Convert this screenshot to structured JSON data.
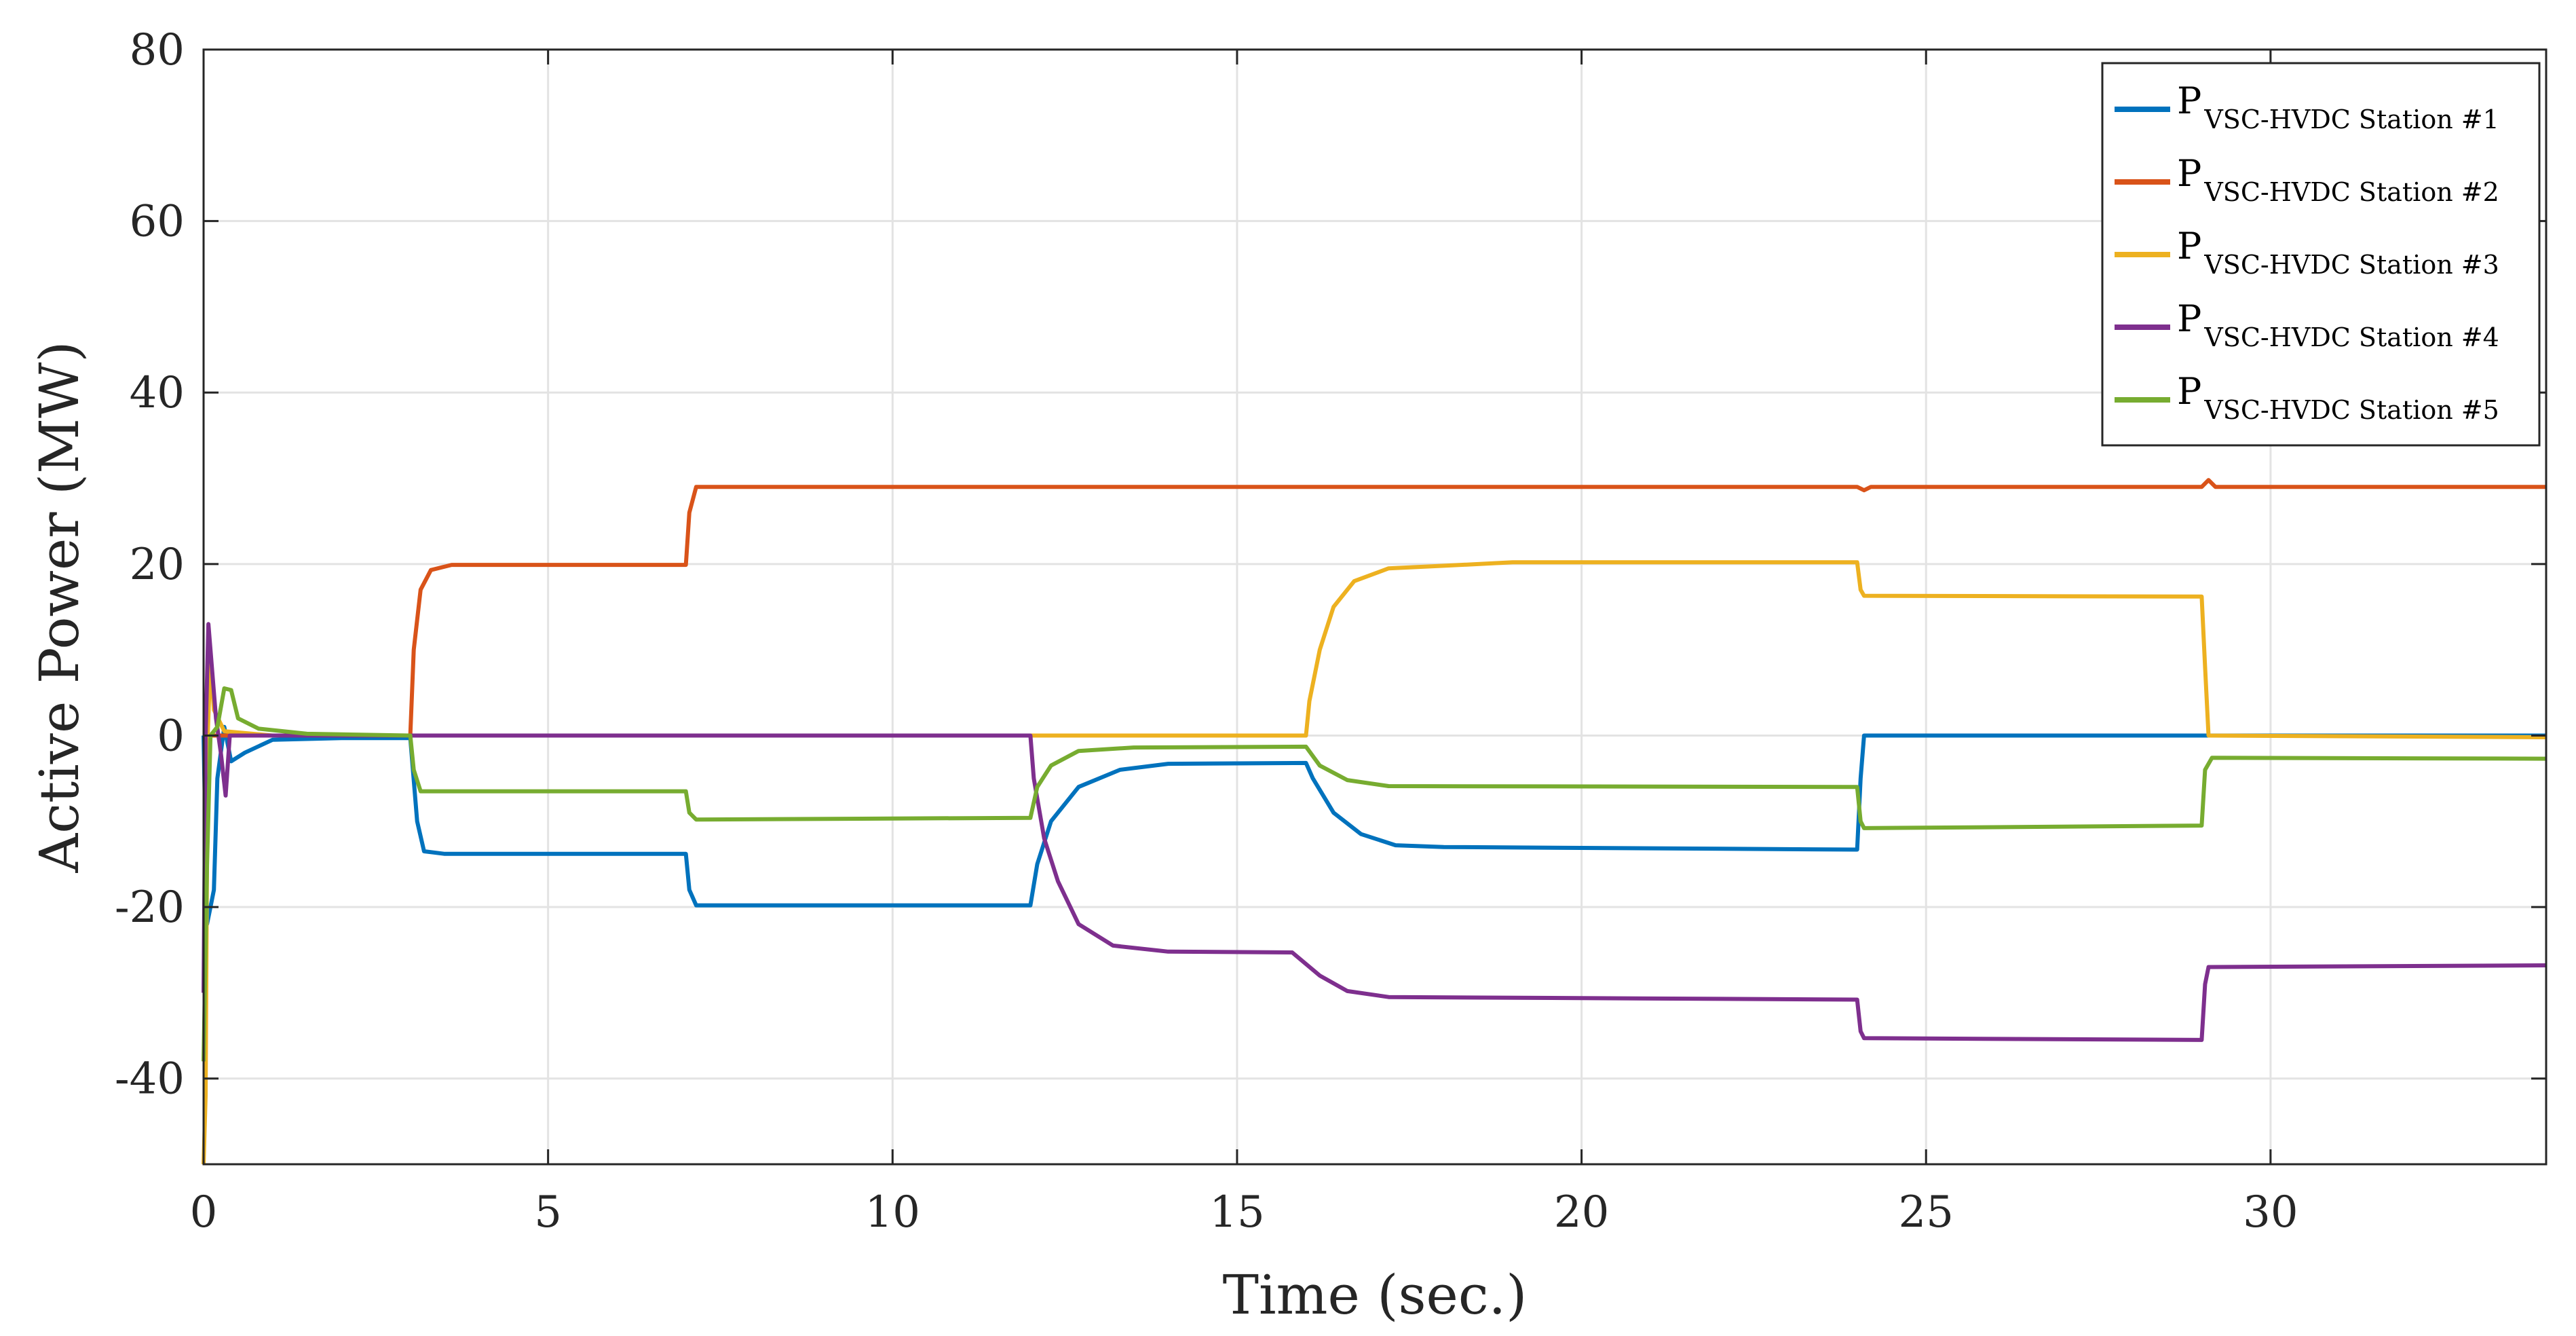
{
  "chart_data": {
    "type": "line",
    "title": "",
    "xlabel": "Time (sec.)",
    "ylabel": "Active Power (MW)",
    "xlim": [
      0,
      34
    ],
    "ylim": [
      -50,
      80
    ],
    "grid": true,
    "legend_position": "top-right",
    "x_ticks": [
      0,
      5,
      10,
      15,
      20,
      25,
      30
    ],
    "y_ticks": [
      -40,
      -20,
      0,
      20,
      40,
      60,
      80
    ],
    "series": [
      {
        "name": "P",
        "subscript": "VSC-HVDC Station #1",
        "color": "#0072BD",
        "points": [
          [
            0,
            0
          ],
          [
            0.05,
            -22
          ],
          [
            0.1,
            -20
          ],
          [
            0.15,
            -18
          ],
          [
            0.2,
            -5
          ],
          [
            0.3,
            1
          ],
          [
            0.4,
            -3
          ],
          [
            0.6,
            -2
          ],
          [
            1,
            -0.5
          ],
          [
            2,
            -0.3
          ],
          [
            3,
            -0.3
          ],
          [
            3.1,
            -10
          ],
          [
            3.2,
            -13.5
          ],
          [
            3.5,
            -13.8
          ],
          [
            7,
            -13.8
          ],
          [
            7.05,
            -18
          ],
          [
            7.15,
            -19.8
          ],
          [
            7.5,
            -19.8
          ],
          [
            12,
            -19.8
          ],
          [
            12.1,
            -15
          ],
          [
            12.3,
            -10
          ],
          [
            12.7,
            -6
          ],
          [
            13.3,
            -4
          ],
          [
            14,
            -3.3
          ],
          [
            16,
            -3.2
          ],
          [
            16.1,
            -5
          ],
          [
            16.4,
            -9
          ],
          [
            16.8,
            -11.5
          ],
          [
            17.3,
            -12.8
          ],
          [
            18,
            -13
          ],
          [
            24,
            -13.3
          ],
          [
            24.05,
            -5
          ],
          [
            24.1,
            0
          ],
          [
            29,
            0
          ],
          [
            34,
            0
          ]
        ]
      },
      {
        "name": "P",
        "subscript": "VSC-HVDC Station #2",
        "color": "#D95319",
        "points": [
          [
            0,
            0
          ],
          [
            3,
            0
          ],
          [
            3.05,
            10
          ],
          [
            3.15,
            17
          ],
          [
            3.3,
            19.3
          ],
          [
            3.6,
            19.9
          ],
          [
            7,
            19.9
          ],
          [
            7.05,
            26
          ],
          [
            7.15,
            29
          ],
          [
            12,
            29
          ],
          [
            24,
            29
          ],
          [
            24.1,
            28.6
          ],
          [
            24.2,
            29
          ],
          [
            29,
            29
          ],
          [
            29.1,
            29.8
          ],
          [
            29.2,
            29
          ],
          [
            34,
            29
          ]
        ]
      },
      {
        "name": "P",
        "subscript": "VSC-HVDC Station #3",
        "color": "#EDB120",
        "points": [
          [
            0,
            -50
          ],
          [
            0.03,
            -42
          ],
          [
            0.06,
            0
          ],
          [
            0.1,
            9
          ],
          [
            0.15,
            3
          ],
          [
            0.3,
            0.5
          ],
          [
            1,
            0
          ],
          [
            12,
            0
          ],
          [
            16,
            0
          ],
          [
            16.05,
            4
          ],
          [
            16.2,
            10
          ],
          [
            16.4,
            15
          ],
          [
            16.7,
            18
          ],
          [
            17.2,
            19.5
          ],
          [
            18,
            19.8
          ],
          [
            19,
            20.2
          ],
          [
            24,
            20.2
          ],
          [
            24.05,
            17
          ],
          [
            24.1,
            16.3
          ],
          [
            29,
            16.2
          ],
          [
            29.05,
            8
          ],
          [
            29.1,
            0
          ],
          [
            34,
            -0.2
          ]
        ]
      },
      {
        "name": "P",
        "subscript": "VSC-HVDC Station #4",
        "color": "#7E2F8E",
        "points": [
          [
            0,
            -30
          ],
          [
            0.03,
            0
          ],
          [
            0.07,
            13
          ],
          [
            0.12,
            8
          ],
          [
            0.18,
            2
          ],
          [
            0.25,
            -2
          ],
          [
            0.32,
            -7
          ],
          [
            0.38,
            0
          ],
          [
            0.5,
            0
          ],
          [
            12,
            0
          ],
          [
            12.05,
            -5
          ],
          [
            12.2,
            -12
          ],
          [
            12.4,
            -17
          ],
          [
            12.7,
            -22
          ],
          [
            13.2,
            -24.5
          ],
          [
            14,
            -25.2
          ],
          [
            15.8,
            -25.3
          ],
          [
            16.2,
            -28
          ],
          [
            16.6,
            -29.8
          ],
          [
            17.2,
            -30.5
          ],
          [
            24,
            -30.8
          ],
          [
            24.05,
            -34.5
          ],
          [
            24.1,
            -35.3
          ],
          [
            29,
            -35.5
          ],
          [
            29.05,
            -29
          ],
          [
            29.1,
            -27
          ],
          [
            34,
            -26.8
          ]
        ]
      },
      {
        "name": "P",
        "subscript": "VSC-HVDC Station #5",
        "color": "#77AC30",
        "points": [
          [
            0,
            -38
          ],
          [
            0.05,
            -15
          ],
          [
            0.1,
            0
          ],
          [
            0.2,
            1
          ],
          [
            0.3,
            5.5
          ],
          [
            0.4,
            5.3
          ],
          [
            0.5,
            2
          ],
          [
            0.8,
            0.8
          ],
          [
            1.5,
            0.2
          ],
          [
            3,
            0
          ],
          [
            3.05,
            -4
          ],
          [
            3.15,
            -6.5
          ],
          [
            7,
            -6.5
          ],
          [
            7.05,
            -9
          ],
          [
            7.15,
            -9.8
          ],
          [
            12,
            -9.6
          ],
          [
            12.1,
            -6
          ],
          [
            12.3,
            -3.5
          ],
          [
            12.7,
            -1.8
          ],
          [
            13.5,
            -1.4
          ],
          [
            16,
            -1.3
          ],
          [
            16.2,
            -3.5
          ],
          [
            16.6,
            -5.2
          ],
          [
            17.2,
            -5.9
          ],
          [
            24,
            -6
          ],
          [
            24.05,
            -10
          ],
          [
            24.1,
            -10.8
          ],
          [
            29,
            -10.5
          ],
          [
            29.05,
            -4
          ],
          [
            29.15,
            -2.6
          ],
          [
            34,
            -2.7
          ]
        ]
      }
    ]
  }
}
